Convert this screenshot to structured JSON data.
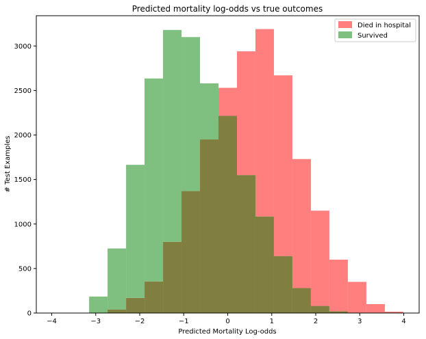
{
  "chart_data": {
    "type": "histogram",
    "title": "Predicted mortality log-odds vs true outcomes",
    "xlabel": "Predicted Mortality Log-odds",
    "ylabel": "# Test Examples",
    "xlim": [
      -4.35,
      4.35
    ],
    "ylim": [
      0,
      3340
    ],
    "x_ticks": [
      -4,
      -3,
      -2,
      -1,
      0,
      1,
      2,
      3,
      4
    ],
    "x_tick_labels": [
      "−4",
      "−3",
      "−2",
      "−1",
      "0",
      "1",
      "2",
      "3",
      "4"
    ],
    "y_ticks": [
      0,
      500,
      1000,
      1500,
      2000,
      2500,
      3000
    ],
    "y_tick_labels": [
      "0",
      "500",
      "1000",
      "1500",
      "2000",
      "2500",
      "3000"
    ],
    "legend_position": "top-right",
    "bin_edges": [
      -3.15,
      -2.73,
      -2.31,
      -1.89,
      -1.47,
      -1.05,
      -0.63,
      -0.21,
      0.21,
      0.63,
      1.05,
      1.47,
      1.89,
      2.31,
      2.73,
      3.15,
      3.57,
      3.99
    ],
    "series": [
      {
        "name": "Died in hospital",
        "color": "#ff7f7f",
        "values": [
          0,
          40,
          170,
          355,
          800,
          1370,
          1950,
          2530,
          2940,
          3190,
          2670,
          1730,
          1150,
          600,
          350,
          100,
          15
        ]
      },
      {
        "name": "Survived",
        "color": "#7fbf7f",
        "values": [
          185,
          725,
          1665,
          2635,
          3180,
          3100,
          2580,
          2215,
          1550,
          1085,
          640,
          280,
          80,
          20,
          0,
          0,
          0
        ]
      }
    ],
    "overlap_color": "#807f3f"
  }
}
